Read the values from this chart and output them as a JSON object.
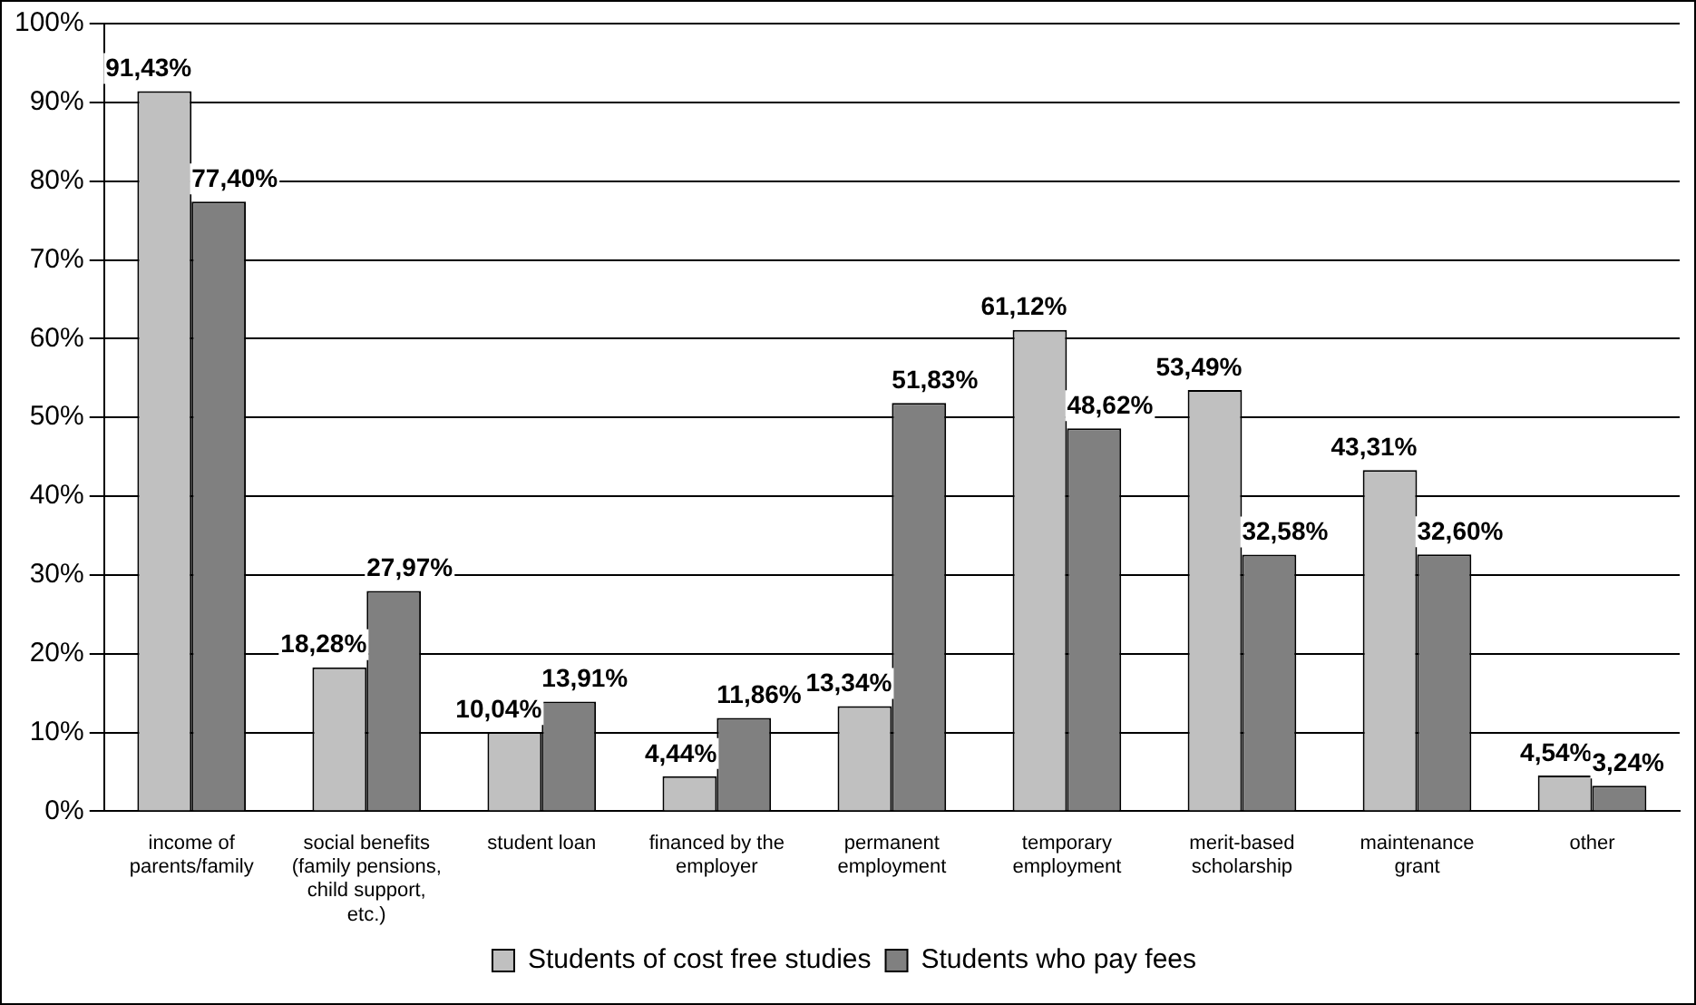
{
  "chart_data": {
    "type": "bar",
    "categories": [
      "income of parents/family",
      "social benefits (family pensions, child support, etc.)",
      "student loan",
      "financed by the employer",
      "permanent employment",
      "temporary employment",
      "merit-based scholarship",
      "maintenance grant",
      "other"
    ],
    "series": [
      {
        "name": "Students of cost free studies",
        "color": "#c0c0c0",
        "values": [
          91.43,
          18.28,
          10.04,
          4.44,
          13.34,
          61.12,
          53.49,
          43.31,
          4.54
        ],
        "value_labels": [
          "91,43%",
          "18,28%",
          "10,04%",
          "4,44%",
          "13,34%",
          "61,12%",
          "53,49%",
          "43,31%",
          "4,54%"
        ]
      },
      {
        "name": "Students who pay fees",
        "color": "#808080",
        "values": [
          77.4,
          27.97,
          13.91,
          11.86,
          51.83,
          48.62,
          32.58,
          32.6,
          3.24
        ],
        "value_labels": [
          "77,40%",
          "27,97%",
          "13,91%",
          "11,86%",
          "51,83%",
          "48,62%",
          "32,58%",
          "32,60%",
          "3,24%"
        ]
      }
    ],
    "ylim": [
      0,
      100
    ],
    "yticks": [
      {
        "value": 0,
        "label": "0%"
      },
      {
        "value": 10,
        "label": "10%"
      },
      {
        "value": 20,
        "label": "20%"
      },
      {
        "value": 30,
        "label": "30%"
      },
      {
        "value": 40,
        "label": "40%"
      },
      {
        "value": 50,
        "label": "50%"
      },
      {
        "value": 60,
        "label": "60%"
      },
      {
        "value": 70,
        "label": "70%"
      },
      {
        "value": 80,
        "label": "80%"
      },
      {
        "value": 90,
        "label": "90%"
      },
      {
        "value": 100,
        "label": "100%"
      }
    ],
    "grid": "y",
    "legend": "bottom"
  }
}
